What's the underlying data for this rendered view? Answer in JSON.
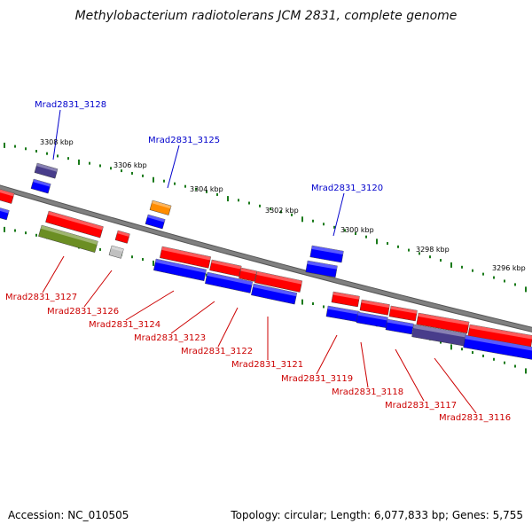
{
  "title": "Methylobacterium radiotolerans JCM 2831, complete genome",
  "footer": {
    "accession": "Accession: NC_010505",
    "topology": "Topology: circular; Length: 6,077,833 bp; Genes: 5,755"
  },
  "ticks": [
    "3308 kbp",
    "3306 kbp",
    "3304 kbp",
    "3302 kbp",
    "3300 kbp",
    "3298 kbp",
    "3296 kbp"
  ],
  "labels_top": [
    "Mrad2831_3128",
    "Mrad2831_3125",
    "Mrad2831_3120"
  ],
  "labels_bottom": [
    "Mrad2831_3127",
    "Mrad2831_3126",
    "Mrad2831_3124",
    "Mrad2831_3123",
    "Mrad2831_3122",
    "Mrad2831_3121",
    "Mrad2831_3119",
    "Mrad2831_3118",
    "Mrad2831_3117",
    "Mrad2831_3116"
  ],
  "colors": {
    "forward": "#ff0000",
    "reverse": "#0000ff",
    "backbone": "#808080",
    "tick": "#1a7a1a",
    "label_top": "#0000cc",
    "label_bottom": "#cc0000",
    "olive": "#6b8e23",
    "orange": "#ff8c00",
    "purple": "#483d8b",
    "grey_gene": "#c0c0c0"
  }
}
